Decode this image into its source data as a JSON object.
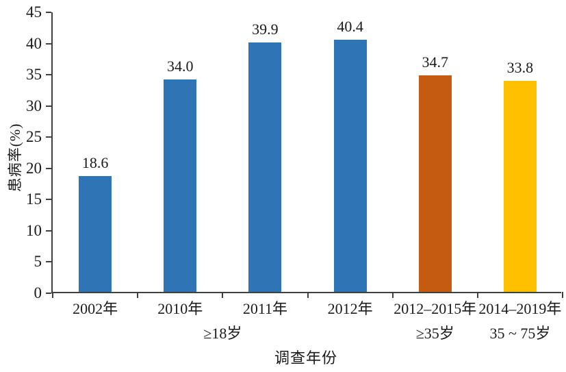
{
  "figure": {
    "background": "#ffffff",
    "axis_color": "#404040",
    "text_color": "#1a1a1a"
  },
  "chart_data": {
    "type": "bar",
    "title": "",
    "xlabel": "调查年份",
    "ylabel": "患病率(%)",
    "ylim": [
      0,
      45
    ],
    "ytick_step": 5,
    "grid": false,
    "legend": null,
    "categories": [
      "2002年",
      "2010年",
      "2011年",
      "2012年",
      "2012–2015年",
      "2014–2019年"
    ],
    "values": [
      18.6,
      34.0,
      39.9,
      40.4,
      34.7,
      33.8
    ],
    "value_labels": [
      "18.6",
      "34.0",
      "39.9",
      "40.4",
      "34.7",
      "33.8"
    ],
    "bar_colors": [
      "#2E75B6",
      "#2E75B6",
      "#2E75B6",
      "#2E75B6",
      "#C55A11",
      "#FFC000"
    ],
    "group_labels": [
      {
        "label": "≥18岁",
        "start": 0,
        "end": 3
      },
      {
        "label": "≥35岁",
        "start": 4,
        "end": 4
      },
      {
        "label": "35 ~ 75岁",
        "start": 5,
        "end": 5
      }
    ]
  }
}
